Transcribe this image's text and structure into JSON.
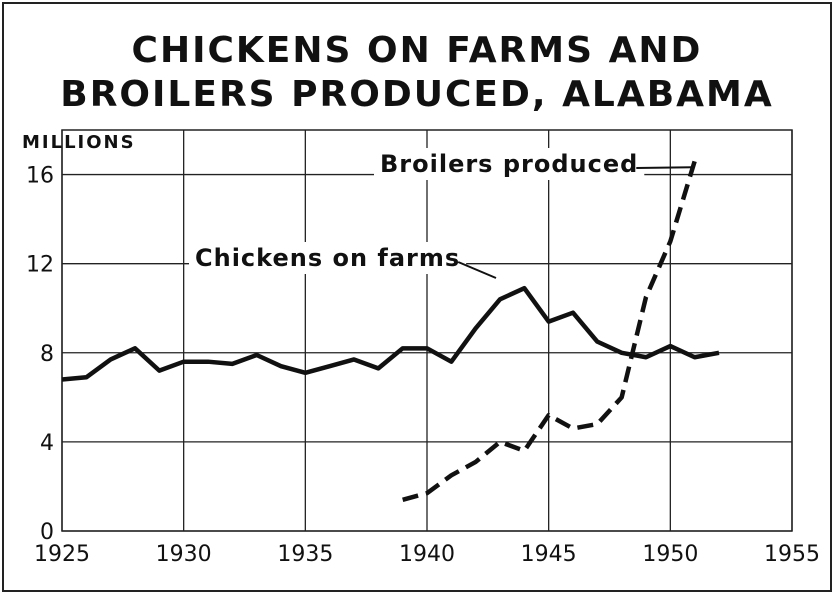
{
  "chart_data": {
    "type": "line",
    "title": [
      "CHICKENS ON FARMS AND",
      "BROILERS PRODUCED, ALABAMA"
    ],
    "y_label": "MILLIONS",
    "x": [
      1925,
      1926,
      1927,
      1928,
      1929,
      1930,
      1931,
      1932,
      1933,
      1934,
      1935,
      1936,
      1937,
      1938,
      1939,
      1940,
      1941,
      1942,
      1943,
      1944,
      1945,
      1946,
      1947,
      1948,
      1949,
      1950,
      1951,
      1952
    ],
    "series": [
      {
        "name": "Chickens on farms",
        "color": "#111111",
        "dashed": false,
        "values": [
          6.8,
          6.9,
          7.7,
          8.2,
          7.2,
          7.6,
          7.6,
          7.5,
          7.9,
          7.4,
          7.1,
          7.4,
          7.7,
          7.3,
          8.2,
          8.2,
          7.6,
          9.1,
          10.4,
          10.9,
          9.4,
          9.8,
          8.5,
          8.0,
          7.8,
          8.3,
          7.8,
          8.0
        ]
      },
      {
        "name": "Broilers produced",
        "color": "#111111",
        "dashed": true,
        "values": [
          null,
          null,
          null,
          null,
          null,
          null,
          null,
          null,
          null,
          null,
          null,
          null,
          null,
          null,
          1.4,
          1.7,
          2.5,
          3.1,
          4.0,
          3.6,
          5.2,
          4.6,
          4.8,
          6.0,
          10.5,
          13.0,
          16.6,
          null
        ]
      }
    ],
    "xlim": [
      1925,
      1955
    ],
    "xticks": [
      1925,
      1930,
      1935,
      1940,
      1945,
      1950,
      1955
    ],
    "ylim": [
      0,
      18
    ],
    "yticks": [
      0,
      4,
      8,
      12,
      16
    ],
    "grid": true
  }
}
